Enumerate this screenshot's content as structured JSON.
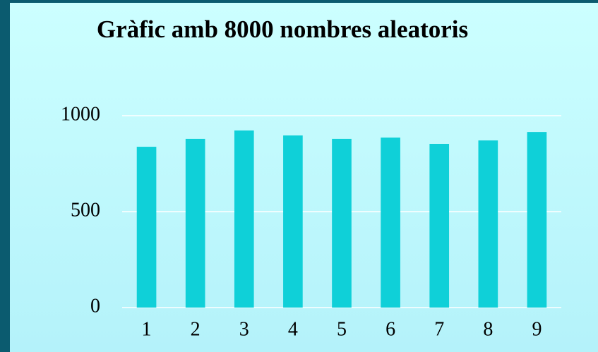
{
  "chart_data": {
    "type": "bar",
    "title": "Gràfic amb 8000 nombres aleatoris",
    "categories": [
      "1",
      "2",
      "3",
      "4",
      "5",
      "6",
      "7",
      "8",
      "9"
    ],
    "values": [
      838,
      879,
      923,
      897,
      879,
      886,
      853,
      871,
      915
    ],
    "color": "#0fd0d8",
    "ylim": [
      0,
      1000
    ],
    "yticks": [
      0,
      500,
      1000
    ],
    "grid": true
  }
}
